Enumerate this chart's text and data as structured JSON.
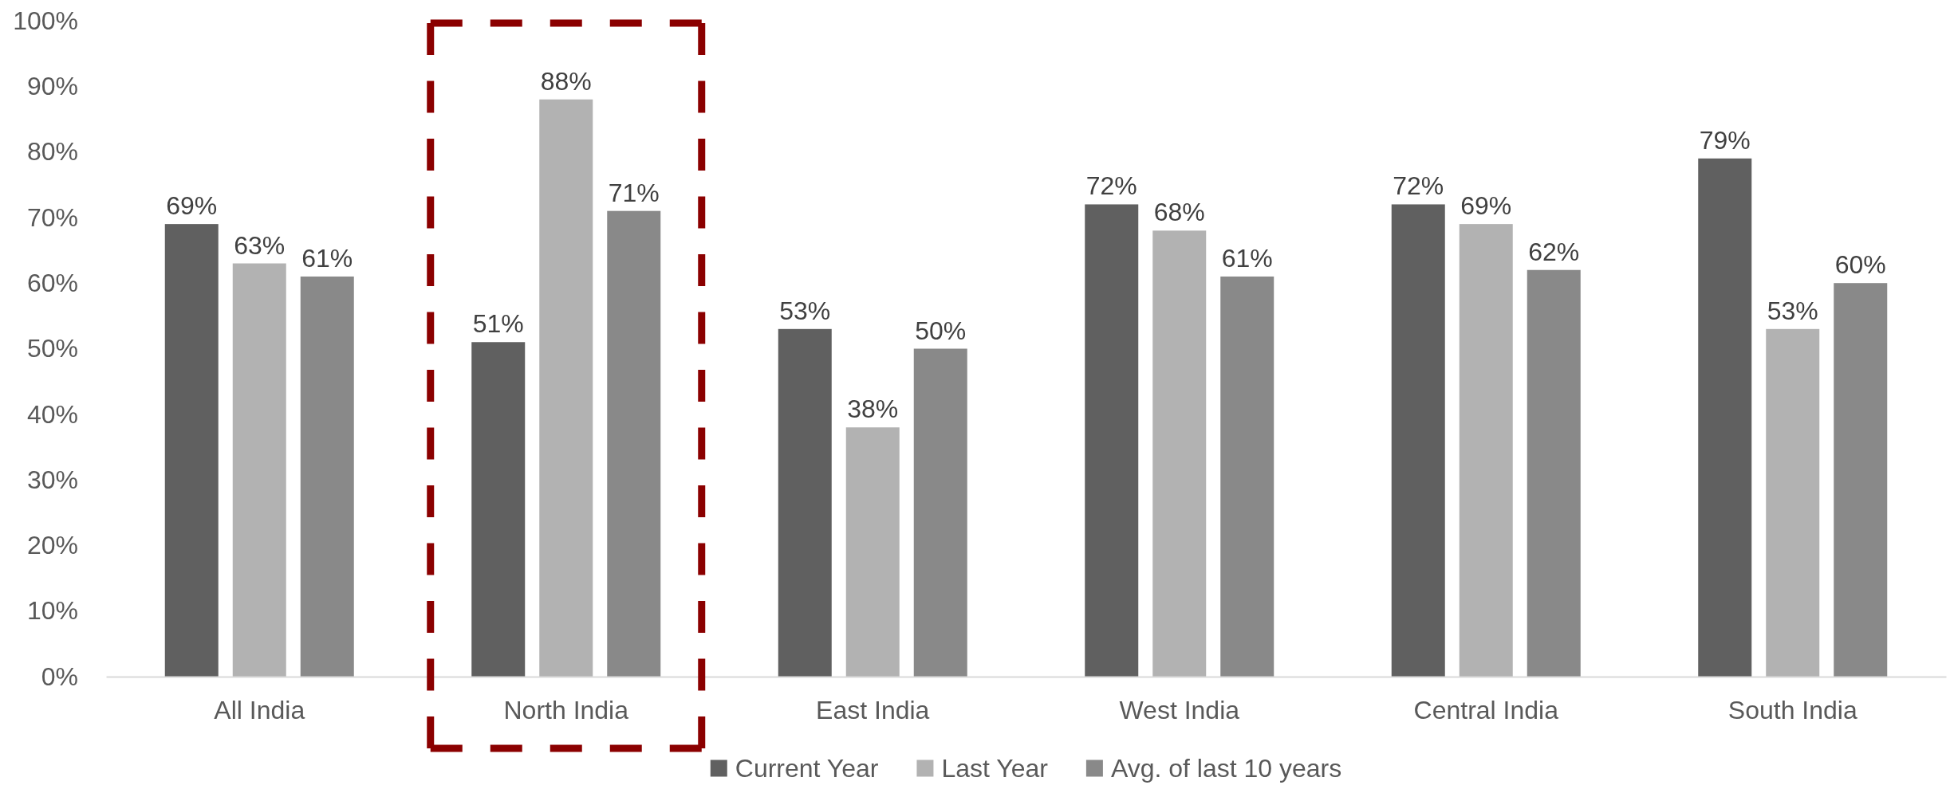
{
  "chart_data": {
    "type": "bar",
    "categories": [
      "All India",
      "North India",
      "East India",
      "West India",
      "Central India",
      "South India"
    ],
    "series": [
      {
        "name": "Current Year",
        "color": "#606060",
        "values": [
          69,
          51,
          53,
          72,
          72,
          79
        ],
        "value_labels": [
          "69%",
          "51%",
          "53%",
          "72%",
          "72%",
          "79%"
        ]
      },
      {
        "name": "Last Year",
        "color": "#b2b2b2",
        "values": [
          63,
          88,
          38,
          68,
          69,
          53
        ],
        "value_labels": [
          "63%",
          "88%",
          "38%",
          "68%",
          "69%",
          "53%"
        ]
      },
      {
        "name": "Avg. of last 10 years",
        "color": "#898989",
        "values": [
          61,
          71,
          50,
          61,
          62,
          60
        ],
        "value_labels": [
          "61%",
          "71%",
          "50%",
          "61%",
          "62%",
          "60%"
        ]
      }
    ],
    "ylim": [
      0,
      100
    ],
    "yticks": [
      {
        "value": 0,
        "label": "0%"
      },
      {
        "value": 10,
        "label": "10%"
      },
      {
        "value": 20,
        "label": "20%"
      },
      {
        "value": 30,
        "label": "30%"
      },
      {
        "value": 40,
        "label": "40%"
      },
      {
        "value": 50,
        "label": "50%"
      },
      {
        "value": 60,
        "label": "60%"
      },
      {
        "value": 70,
        "label": "70%"
      },
      {
        "value": 80,
        "label": "80%"
      },
      {
        "value": 90,
        "label": "90%"
      },
      {
        "value": 100,
        "label": "100%"
      }
    ],
    "legend": "bottom"
  }
}
